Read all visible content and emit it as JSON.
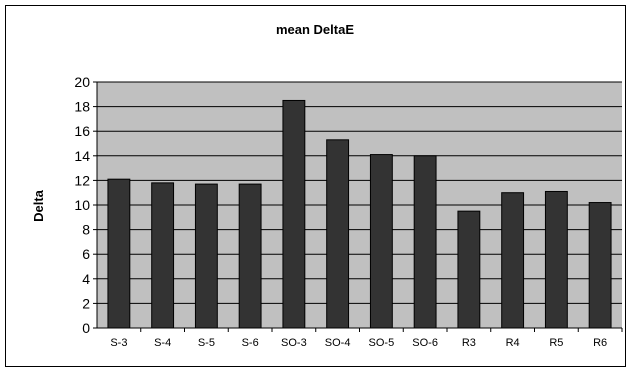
{
  "chart_data": {
    "type": "bar",
    "title": "mean DeltaE",
    "xlabel": "",
    "ylabel": "Delta",
    "categories": [
      "S-3",
      "S-4",
      "S-5",
      "S-6",
      "SO-3",
      "SO-4",
      "SO-5",
      "SO-6",
      "R3",
      "R4",
      "R5",
      "R6"
    ],
    "values": [
      12.1,
      11.8,
      11.7,
      11.7,
      18.5,
      15.3,
      14.1,
      14.0,
      9.5,
      11.0,
      11.1,
      10.2
    ],
    "ylim": [
      0,
      20
    ],
    "yticks": [
      0,
      2,
      4,
      6,
      8,
      10,
      12,
      14,
      16,
      18,
      20
    ],
    "grid": true,
    "legend": "none",
    "colors": {
      "bar": "#333333",
      "plot_background": "#c0c0c0",
      "gridline": "#000000"
    }
  }
}
